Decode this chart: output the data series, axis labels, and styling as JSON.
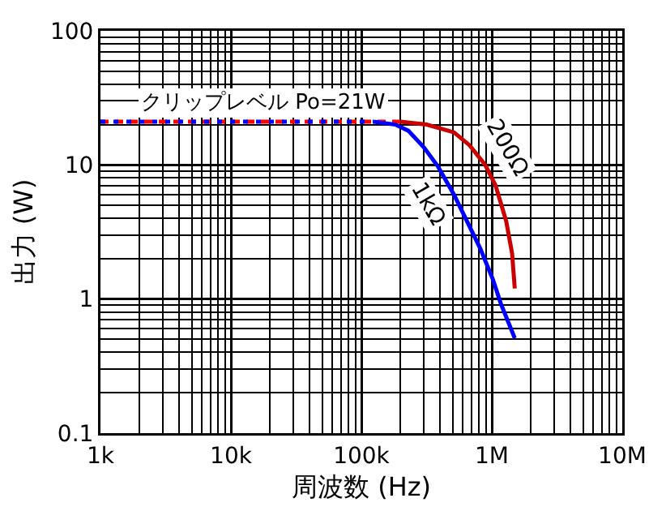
{
  "chart_data": {
    "type": "line",
    "xlabel": "周波数 (Hz)",
    "ylabel": "出力 (W)",
    "log": "xy",
    "xlim": [
      1000,
      10000000
    ],
    "ylim": [
      0.1,
      100
    ],
    "xticks": [
      {
        "value": 1000,
        "label": "1k"
      },
      {
        "value": 10000,
        "label": "10k"
      },
      {
        "value": 100000,
        "label": "100k"
      },
      {
        "value": 1000000,
        "label": "1M"
      },
      {
        "value": 10000000,
        "label": "10M"
      }
    ],
    "yticks": [
      0.1,
      1,
      10,
      100
    ],
    "grid": true,
    "legend": false,
    "marker": "none",
    "series": [
      {
        "color": "#ff0000",
        "line_style": "dashed",
        "x": [
          1000,
          200000
        ],
        "values": [
          21,
          21
        ]
      },
      {
        "color": "#0000ff",
        "line_style": "dotted",
        "x": [
          1000,
          124000
        ],
        "values": [
          21,
          21
        ]
      },
      {
        "name": "200Ω",
        "color": "#cc0000",
        "line_style": "solid",
        "x": [
          200000,
          316000,
          513000,
          676000,
          891000,
          1070000,
          1290000,
          1430000,
          1500000
        ],
        "values": [
          21,
          20,
          17.5,
          14,
          10,
          7,
          3.8,
          2.2,
          1.2
        ]
      },
      {
        "name": "1kΩ",
        "color": "#0000ff",
        "line_style": "solid",
        "x": [
          124000,
          182000,
          229000,
          302000,
          385000,
          513000,
          646000,
          813000,
          1020000,
          1170000,
          1500000
        ],
        "values": [
          21,
          20,
          18,
          13.5,
          9.8,
          6,
          3.8,
          2.4,
          1.4,
          0.93,
          0.51
        ]
      }
    ],
    "annotations": [
      "クリップレベル Po=21W"
    ]
  }
}
